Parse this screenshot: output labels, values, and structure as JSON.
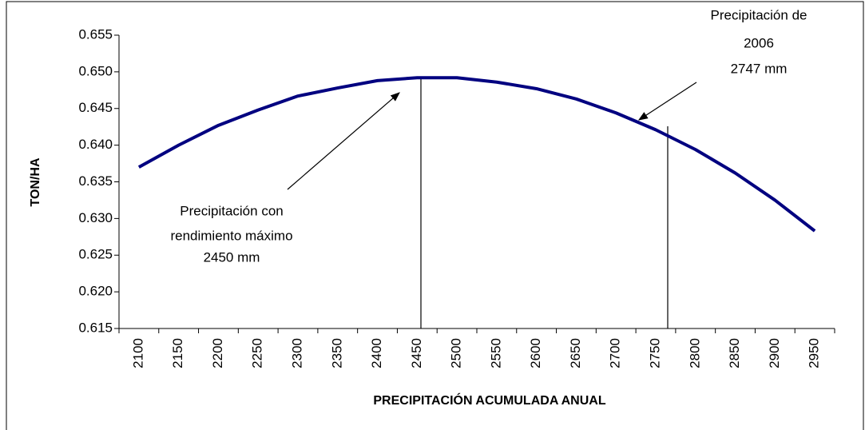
{
  "chart_data": {
    "type": "line",
    "categories": [
      "2100",
      "2150",
      "2200",
      "2250",
      "2300",
      "2350",
      "2400",
      "2450",
      "2500",
      "2550",
      "2600",
      "2650",
      "2700",
      "2750",
      "2800",
      "2850",
      "2900",
      "2950"
    ],
    "series": [
      {
        "name": "TON/HA",
        "color": "#000080",
        "values": [
          0.637,
          0.64,
          0.6427,
          0.6448,
          0.6467,
          0.6478,
          0.6488,
          0.6492,
          0.6492,
          0.6486,
          0.6477,
          0.6463,
          0.6444,
          0.6421,
          0.6394,
          0.6362,
          0.6325,
          0.6283
        ]
      }
    ],
    "ylabel": "TON/HA",
    "xlabel": "PRECIPITACIÓN ACUMULADA ANUAL",
    "ylim": [
      0.615,
      0.655
    ],
    "yticks": [
      0.615,
      {
        "value": 0.62,
        "label": "0.620"
      },
      0.625,
      {
        "value": 0.63,
        "label": "0.630"
      },
      0.635,
      {
        "value": 0.64,
        "label": "0.640"
      },
      0.645,
      {
        "value": 0.65,
        "label": "0.650"
      },
      0.655
    ],
    "annotations": [
      [
        "Precipitación con",
        "rendimiento máximo",
        "2450 mm"
      ],
      [
        "Precipitación de",
        "2006",
        "2747 mm"
      ]
    ]
  }
}
